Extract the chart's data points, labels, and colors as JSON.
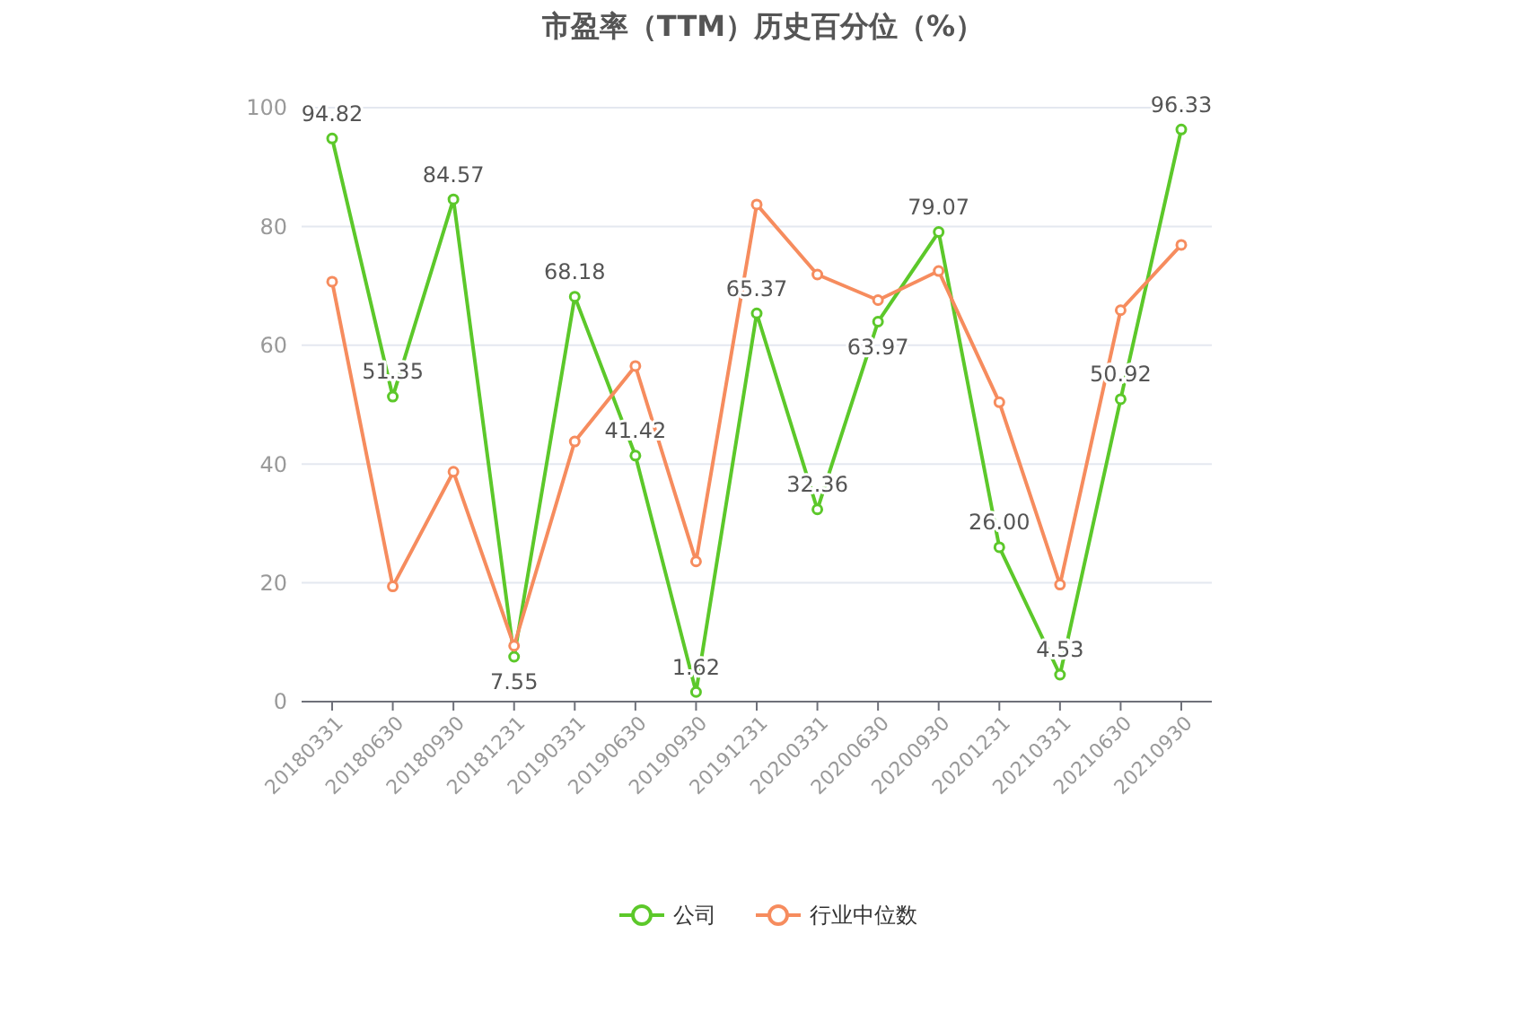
{
  "chart_data": {
    "type": "line",
    "title": "市盈率（TTM）历史百分位（%）",
    "categories": [
      "20180331",
      "20180630",
      "20180930",
      "20181231",
      "20190331",
      "20190630",
      "20190930",
      "20191231",
      "20200331",
      "20200630",
      "20200930",
      "20201231",
      "20210331",
      "20210630",
      "20210930"
    ],
    "series": [
      {
        "name": "公司",
        "color": "#5cc82a",
        "values": [
          94.82,
          51.35,
          84.57,
          7.55,
          68.18,
          41.42,
          1.62,
          65.37,
          32.36,
          63.97,
          79.07,
          26.0,
          4.53,
          50.92,
          96.33
        ],
        "value_labels": [
          "94.82",
          "51.35",
          "84.57",
          "7.55",
          "68.18",
          "41.42",
          "1.62",
          "65.37",
          "32.36",
          "63.97",
          "79.07",
          "26.00",
          "4.53",
          "50.92",
          "96.33"
        ]
      },
      {
        "name": "行业中位数",
        "color": "#f68c5e",
        "values": [
          70.7,
          19.4,
          38.7,
          9.4,
          43.8,
          56.5,
          23.6,
          83.7,
          71.9,
          67.6,
          72.5,
          50.4,
          19.7,
          65.9,
          76.9
        ]
      }
    ],
    "ylim": [
      0,
      100
    ],
    "yticks": [
      0,
      20,
      40,
      60,
      80,
      100
    ],
    "grid": "y",
    "legend": "bottom",
    "marker": "circle",
    "line_style": "solid"
  }
}
